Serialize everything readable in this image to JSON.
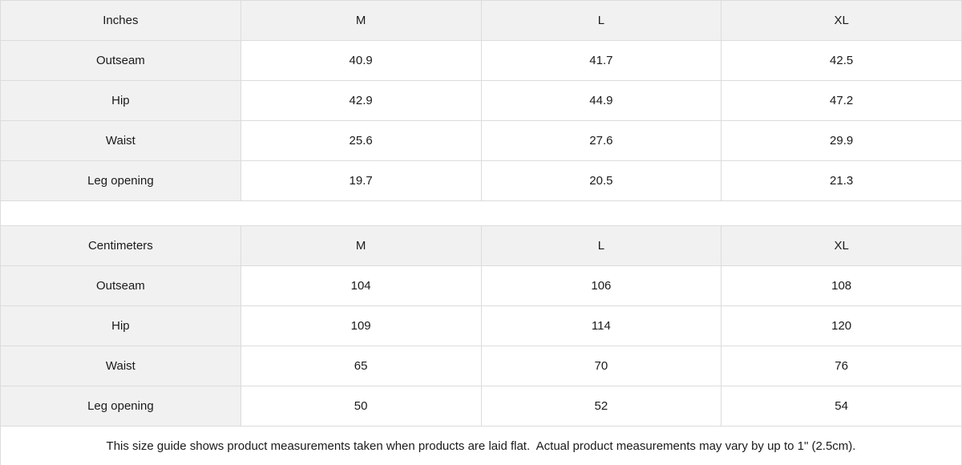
{
  "colors": {
    "header_cell_bg": "#f1f1f1",
    "border": "#dcdcdc",
    "text": "#1a1a1a",
    "cell_bg": "#ffffff"
  },
  "size_guide": {
    "tables": [
      {
        "unit_label": "Inches",
        "columns": [
          "M",
          "L",
          "XL"
        ],
        "rows": [
          {
            "label": "Outseam",
            "values": [
              "40.9",
              "41.7",
              "42.5"
            ]
          },
          {
            "label": "Hip",
            "values": [
              "42.9",
              "44.9",
              "47.2"
            ]
          },
          {
            "label": "Waist",
            "values": [
              "25.6",
              "27.6",
              "29.9"
            ]
          },
          {
            "label": "Leg opening",
            "values": [
              "19.7",
              "20.5",
              "21.3"
            ]
          }
        ]
      },
      {
        "unit_label": "Centimeters",
        "columns": [
          "M",
          "L",
          "XL"
        ],
        "rows": [
          {
            "label": "Outseam",
            "values": [
              "104",
              "106",
              "108"
            ]
          },
          {
            "label": "Hip",
            "values": [
              "109",
              "114",
              "120"
            ]
          },
          {
            "label": "Waist",
            "values": [
              "65",
              "70",
              "76"
            ]
          },
          {
            "label": "Leg opening",
            "values": [
              "50",
              "52",
              "54"
            ]
          }
        ]
      }
    ],
    "footnote": "This size guide shows product measurements taken when products are laid flat.  Actual product measurements may vary by up to 1\" (2.5cm)."
  }
}
